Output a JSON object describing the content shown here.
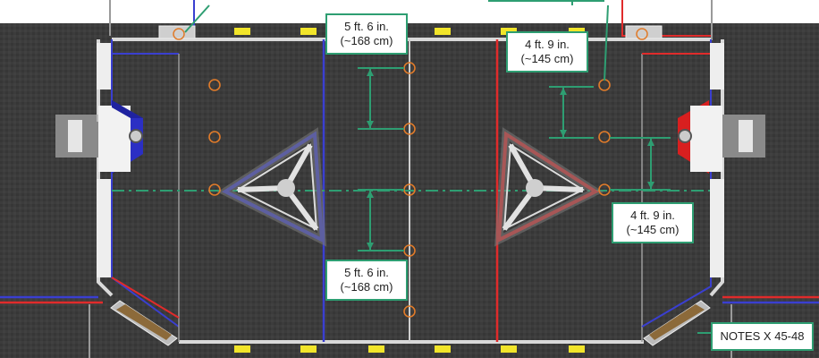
{
  "callouts": {
    "top_center": {
      "line1": "5 ft. 6 in.",
      "line2": "(~168 cm)"
    },
    "bottom_center": {
      "line1": "5 ft. 6 in.",
      "line2": "(~168 cm)"
    },
    "top_right": {
      "line1": "4 ft. 9 in.",
      "line2": "(~145 cm)"
    },
    "mid_right": {
      "line1": "4 ft. 9 in.",
      "line2": "(~145 cm)"
    },
    "notes": {
      "text": "NOTES X 45-48"
    }
  },
  "colors": {
    "carpet": "#3b3b3b",
    "blue_alliance": "#3a3fd0",
    "red_alliance": "#e02b2b",
    "dimension_green": "#2e9e72",
    "note_orange": "#e07b2a",
    "wall": "#d9d9d9",
    "bumper_yellow": "#f2e52a"
  },
  "icons": {
    "note": "orange-ring-icon",
    "stage": "triangular-stage-icon",
    "speaker": "speaker-icon"
  }
}
